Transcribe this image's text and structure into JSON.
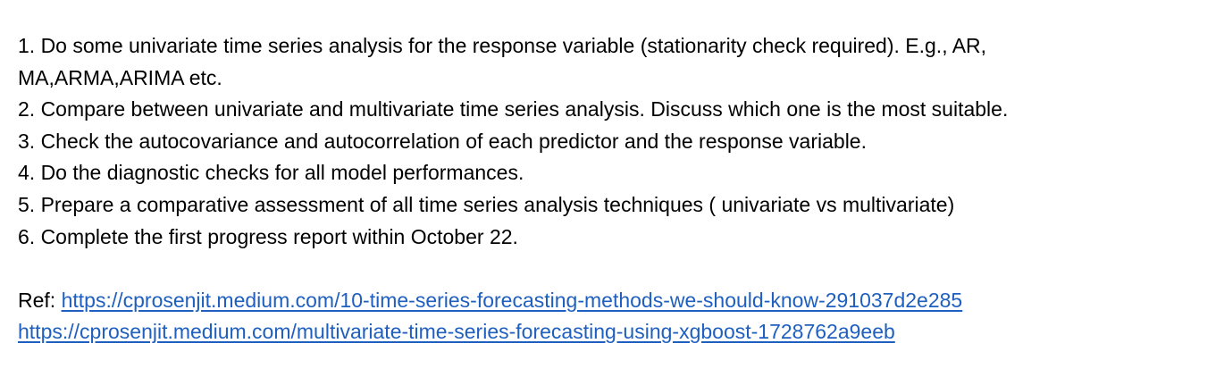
{
  "document": {
    "tasks": [
      {
        "lines": [
          "1. Do some univariate time series analysis for the response variable (stationarity check required). E.g., AR,",
          "MA,ARMA,ARIMA etc."
        ]
      },
      {
        "lines": [
          "2. Compare between univariate and multivariate time series analysis. Discuss which one is the most suitable."
        ]
      },
      {
        "lines": [
          "3. Check the autocovariance and autocorrelation of each predictor and the response variable."
        ]
      },
      {
        "lines": [
          "4. Do the diagnostic checks for all model performances."
        ]
      },
      {
        "lines": [
          "5. Prepare a comparative assessment of all time series analysis techniques ( univariate vs multivariate)"
        ]
      },
      {
        "lines": [
          "6. Complete the first progress report within October 22."
        ]
      }
    ],
    "references": {
      "label": "Ref: ",
      "links": [
        "https://cprosenjit.medium.com/10-time-series-forecasting-methods-we-should-know-291037d2e285",
        "https://cprosenjit.medium.com/multivariate-time-series-forecasting-using-xgboost-1728762a9eeb"
      ]
    },
    "colors": {
      "text": "#000000",
      "link": "#1f5fbf",
      "background": "#ffffff"
    }
  }
}
